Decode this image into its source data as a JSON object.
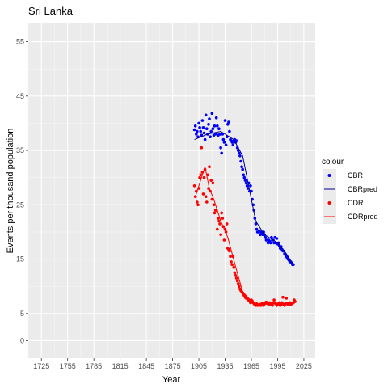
{
  "chart_data": {
    "type": "scatter",
    "title": "Sri Lanka",
    "xlabel": "Year",
    "ylabel": "Events per thousand population",
    "xlim": [
      1710,
      2038
    ],
    "ylim": [
      -3.2,
      58.5
    ],
    "x_ticks": [
      1725,
      1755,
      1785,
      1815,
      1845,
      1875,
      1905,
      1935,
      1965,
      1995,
      2025
    ],
    "y_ticks": [
      0,
      5,
      15,
      25,
      35,
      45,
      55
    ],
    "grid": true,
    "legend": {
      "title": "colour",
      "position": "right"
    },
    "series": [
      {
        "name": "CBR",
        "kind": "points",
        "color": "#0000ff",
        "points": [
          [
            1900,
            38.8
          ],
          [
            1901,
            39.5
          ],
          [
            1902,
            38.0
          ],
          [
            1903,
            38.5
          ],
          [
            1904,
            37.5
          ],
          [
            1905,
            40.0
          ],
          [
            1906,
            39.2
          ],
          [
            1907,
            38.5
          ],
          [
            1908,
            37.8
          ],
          [
            1909,
            40.5
          ],
          [
            1910,
            39.2
          ],
          [
            1911,
            38.2
          ],
          [
            1912,
            37.0
          ],
          [
            1913,
            41.5
          ],
          [
            1914,
            39.0
          ],
          [
            1915,
            38.0
          ],
          [
            1916,
            39.8
          ],
          [
            1917,
            40.8
          ],
          [
            1918,
            37.5
          ],
          [
            1919,
            38.5
          ],
          [
            1920,
            41.8
          ],
          [
            1921,
            39.0
          ],
          [
            1922,
            37.8
          ],
          [
            1923,
            39.5
          ],
          [
            1924,
            38.0
          ],
          [
            1925,
            41.0
          ],
          [
            1926,
            39.5
          ],
          [
            1927,
            37.8
          ],
          [
            1928,
            39.0
          ],
          [
            1929,
            38.0
          ],
          [
            1930,
            35.5
          ],
          [
            1931,
            34.5
          ],
          [
            1932,
            38.0
          ],
          [
            1933,
            37.0
          ],
          [
            1934,
            36.5
          ],
          [
            1935,
            40.5
          ],
          [
            1936,
            36.0
          ],
          [
            1937,
            37.5
          ],
          [
            1938,
            39.8
          ],
          [
            1939,
            40.2
          ],
          [
            1940,
            38.5
          ],
          [
            1941,
            37.0
          ],
          [
            1942,
            36.8
          ],
          [
            1943,
            36.5
          ],
          [
            1944,
            36.0
          ],
          [
            1945,
            36.8
          ],
          [
            1946,
            37.0
          ],
          [
            1947,
            36.5
          ],
          [
            1948,
            36.8
          ],
          [
            1949,
            35.5
          ],
          [
            1950,
            35.0
          ],
          [
            1951,
            34.5
          ],
          [
            1952,
            34.0
          ],
          [
            1953,
            33.0
          ],
          [
            1954,
            32.0
          ],
          [
            1955,
            31.5
          ],
          [
            1956,
            30.5
          ],
          [
            1957,
            30.0
          ],
          [
            1958,
            29.5
          ],
          [
            1959,
            29.0
          ],
          [
            1960,
            28.5
          ],
          [
            1961,
            28.0
          ],
          [
            1962,
            29.0
          ],
          [
            1963,
            27.5
          ],
          [
            1964,
            28.5
          ],
          [
            1965,
            27.5
          ],
          [
            1966,
            26.0
          ],
          [
            1967,
            25.0
          ],
          [
            1968,
            24.0
          ],
          [
            1969,
            22.5
          ],
          [
            1970,
            21.5
          ],
          [
            1971,
            20.5
          ],
          [
            1972,
            20.0
          ],
          [
            1973,
            20.0
          ],
          [
            1974,
            20.2
          ],
          [
            1975,
            19.5
          ],
          [
            1976,
            20.0
          ],
          [
            1977,
            19.8
          ],
          [
            1978,
            19.5
          ],
          [
            1979,
            20.0
          ],
          [
            1980,
            19.5
          ],
          [
            1981,
            19.0
          ],
          [
            1982,
            18.5
          ],
          [
            1983,
            18.5
          ],
          [
            1984,
            18.0
          ],
          [
            1985,
            18.5
          ],
          [
            1986,
            18.3
          ],
          [
            1987,
            18.0
          ],
          [
            1988,
            19.0
          ],
          [
            1989,
            18.5
          ],
          [
            1990,
            18.5
          ],
          [
            1991,
            18.0
          ],
          [
            1992,
            19.0
          ],
          [
            1993,
            18.0
          ],
          [
            1994,
            18.8
          ],
          [
            1995,
            17.8
          ],
          [
            1996,
            18.0
          ],
          [
            1997,
            17.5
          ],
          [
            1998,
            17.0
          ],
          [
            1999,
            17.3
          ],
          [
            2000,
            16.8
          ],
          [
            2001,
            16.5
          ],
          [
            2002,
            16.5
          ],
          [
            2003,
            16.0
          ],
          [
            2004,
            15.8
          ],
          [
            2005,
            15.5
          ],
          [
            2006,
            15.2
          ],
          [
            2007,
            15.0
          ],
          [
            2008,
            14.8
          ],
          [
            2009,
            14.5
          ],
          [
            2010,
            14.5
          ],
          [
            2011,
            14.3
          ],
          [
            2012,
            14.0
          ],
          [
            2013,
            14.0
          ]
        ]
      },
      {
        "name": "CBRpred",
        "kind": "line",
        "color": "#00008b",
        "points": [
          [
            1900,
            37.0
          ],
          [
            1915,
            38.0
          ],
          [
            1930,
            38.5
          ],
          [
            1945,
            37.0
          ],
          [
            1955,
            34.0
          ],
          [
            1970,
            22.0
          ],
          [
            1980,
            19.5
          ],
          [
            1995,
            18.0
          ],
          [
            2005,
            16.0
          ],
          [
            2013,
            14.0
          ]
        ]
      },
      {
        "name": "CDR",
        "kind": "points",
        "color": "#ff0000",
        "points": [
          [
            1900,
            28.5
          ],
          [
            1901,
            26.5
          ],
          [
            1902,
            27.5
          ],
          [
            1903,
            25.5
          ],
          [
            1904,
            25.0
          ],
          [
            1905,
            28.0
          ],
          [
            1906,
            30.0
          ],
          [
            1907,
            30.5
          ],
          [
            1908,
            35.5
          ],
          [
            1909,
            31.0
          ],
          [
            1910,
            27.0
          ],
          [
            1911,
            30.0
          ],
          [
            1912,
            31.5
          ],
          [
            1913,
            26.5
          ],
          [
            1914,
            25.5
          ],
          [
            1915,
            30.5
          ],
          [
            1916,
            28.0
          ],
          [
            1917,
            32.0
          ],
          [
            1918,
            27.5
          ],
          [
            1919,
            29.5
          ],
          [
            1920,
            26.0
          ],
          [
            1921,
            29.0
          ],
          [
            1922,
            25.0
          ],
          [
            1923,
            23.5
          ],
          [
            1924,
            24.0
          ],
          [
            1925,
            24.0
          ],
          [
            1926,
            20.5
          ],
          [
            1927,
            22.5
          ],
          [
            1928,
            22.0
          ],
          [
            1929,
            21.5
          ],
          [
            1930,
            19.5
          ],
          [
            1931,
            23.5
          ],
          [
            1932,
            22.5
          ],
          [
            1933,
            21.0
          ],
          [
            1934,
            18.5
          ],
          [
            1935,
            20.5
          ],
          [
            1936,
            20.0
          ],
          [
            1937,
            21.5
          ],
          [
            1938,
            17.0
          ],
          [
            1939,
            16.8
          ],
          [
            1940,
            16.5
          ],
          [
            1941,
            15.5
          ],
          [
            1942,
            14.5
          ],
          [
            1943,
            14.0
          ],
          [
            1944,
            15.5
          ],
          [
            1945,
            13.5
          ],
          [
            1946,
            12.5
          ],
          [
            1947,
            12.0
          ],
          [
            1948,
            11.5
          ],
          [
            1949,
            11.0
          ],
          [
            1950,
            10.5
          ],
          [
            1951,
            10.0
          ],
          [
            1952,
            9.5
          ],
          [
            1953,
            9.2
          ],
          [
            1954,
            9.0
          ],
          [
            1955,
            8.8
          ],
          [
            1956,
            8.5
          ],
          [
            1957,
            8.2
          ],
          [
            1958,
            8.0
          ],
          [
            1959,
            7.8
          ],
          [
            1960,
            7.8
          ],
          [
            1961,
            7.5
          ],
          [
            1962,
            7.5
          ],
          [
            1963,
            7.3
          ],
          [
            1964,
            7.0
          ],
          [
            1965,
            7.5
          ],
          [
            1966,
            7.3
          ],
          [
            1967,
            7.0
          ],
          [
            1968,
            6.8
          ],
          [
            1969,
            6.7
          ],
          [
            1970,
            6.5
          ],
          [
            1971,
            6.8
          ],
          [
            1972,
            6.5
          ],
          [
            1973,
            6.6
          ],
          [
            1974,
            6.5
          ],
          [
            1975,
            6.7
          ],
          [
            1976,
            6.5
          ],
          [
            1977,
            6.8
          ],
          [
            1978,
            6.9
          ],
          [
            1979,
            6.5
          ],
          [
            1980,
            6.8
          ],
          [
            1981,
            7.0
          ],
          [
            1982,
            7.1
          ],
          [
            1983,
            6.9
          ],
          [
            1984,
            6.8
          ],
          [
            1985,
            6.7
          ],
          [
            1986,
            7.0
          ],
          [
            1987,
            6.8
          ],
          [
            1988,
            6.6
          ],
          [
            1989,
            6.5
          ],
          [
            1990,
            7.0
          ],
          [
            1991,
            7.5
          ],
          [
            1992,
            7.0
          ],
          [
            1993,
            6.8
          ],
          [
            1994,
            6.5
          ],
          [
            1995,
            6.6
          ],
          [
            1996,
            6.8
          ],
          [
            1997,
            7.0
          ],
          [
            1998,
            6.5
          ],
          [
            1999,
            6.6
          ],
          [
            2000,
            7.0
          ],
          [
            2001,
            8.0
          ],
          [
            2002,
            6.7
          ],
          [
            2003,
            6.5
          ],
          [
            2004,
            6.8
          ],
          [
            2005,
            7.8
          ],
          [
            2006,
            6.9
          ],
          [
            2007,
            6.6
          ],
          [
            2008,
            6.8
          ],
          [
            2009,
            7.0
          ],
          [
            2010,
            6.7
          ],
          [
            2011,
            6.8
          ],
          [
            2012,
            6.9
          ],
          [
            2013,
            7.0
          ],
          [
            2014,
            7.5
          ],
          [
            2015,
            7.2
          ]
        ]
      },
      {
        "name": "CDRpred",
        "kind": "line",
        "color": "#ff0000",
        "points": [
          [
            1902,
            27.0
          ],
          [
            1912,
            32.0
          ],
          [
            1917,
            28.0
          ],
          [
            1922,
            26.0
          ],
          [
            1930,
            22.0
          ],
          [
            1938,
            19.0
          ],
          [
            1948,
            13.0
          ],
          [
            1955,
            9.0
          ],
          [
            1962,
            7.8
          ],
          [
            1970,
            6.8
          ],
          [
            1985,
            6.7
          ],
          [
            2000,
            6.8
          ],
          [
            2015,
            7.0
          ]
        ]
      }
    ]
  }
}
